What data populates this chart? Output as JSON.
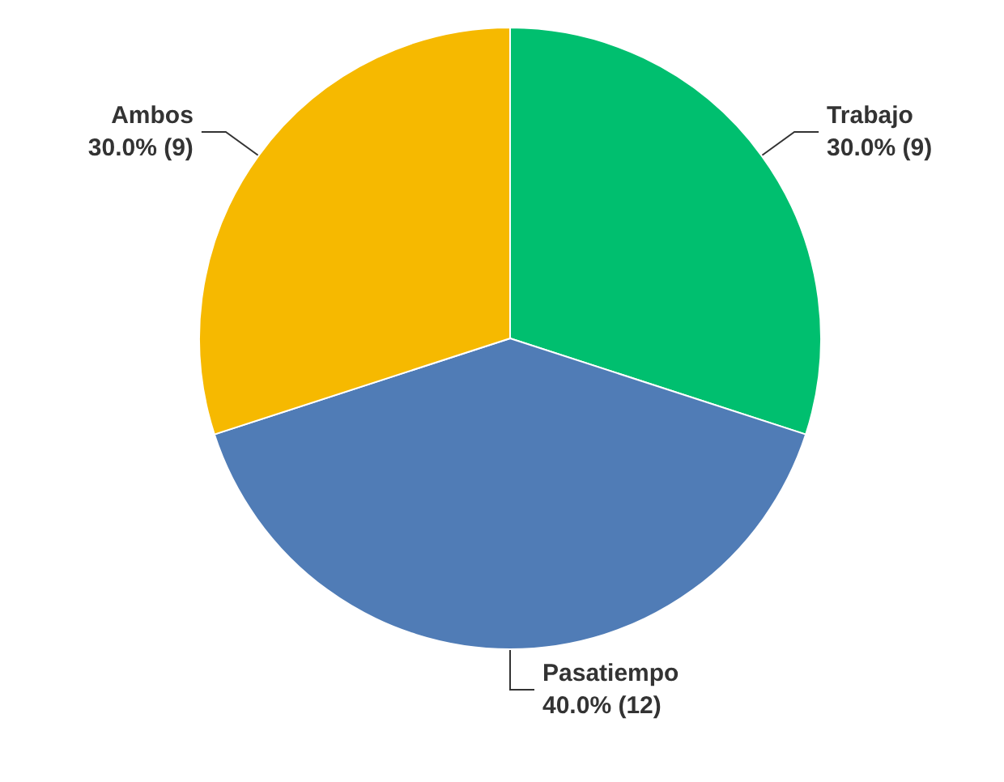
{
  "chart_data": {
    "type": "pie",
    "categories": [
      "Trabajo",
      "Pasatiempo",
      "Ambos"
    ],
    "values": [
      9,
      12,
      9
    ],
    "value_labels": [
      "30.0% (9)",
      "40.0% (12)",
      "30.0% (9)"
    ],
    "colors": [
      "#00bf6f",
      "#507cb6",
      "#f6b900"
    ],
    "legend": false
  }
}
